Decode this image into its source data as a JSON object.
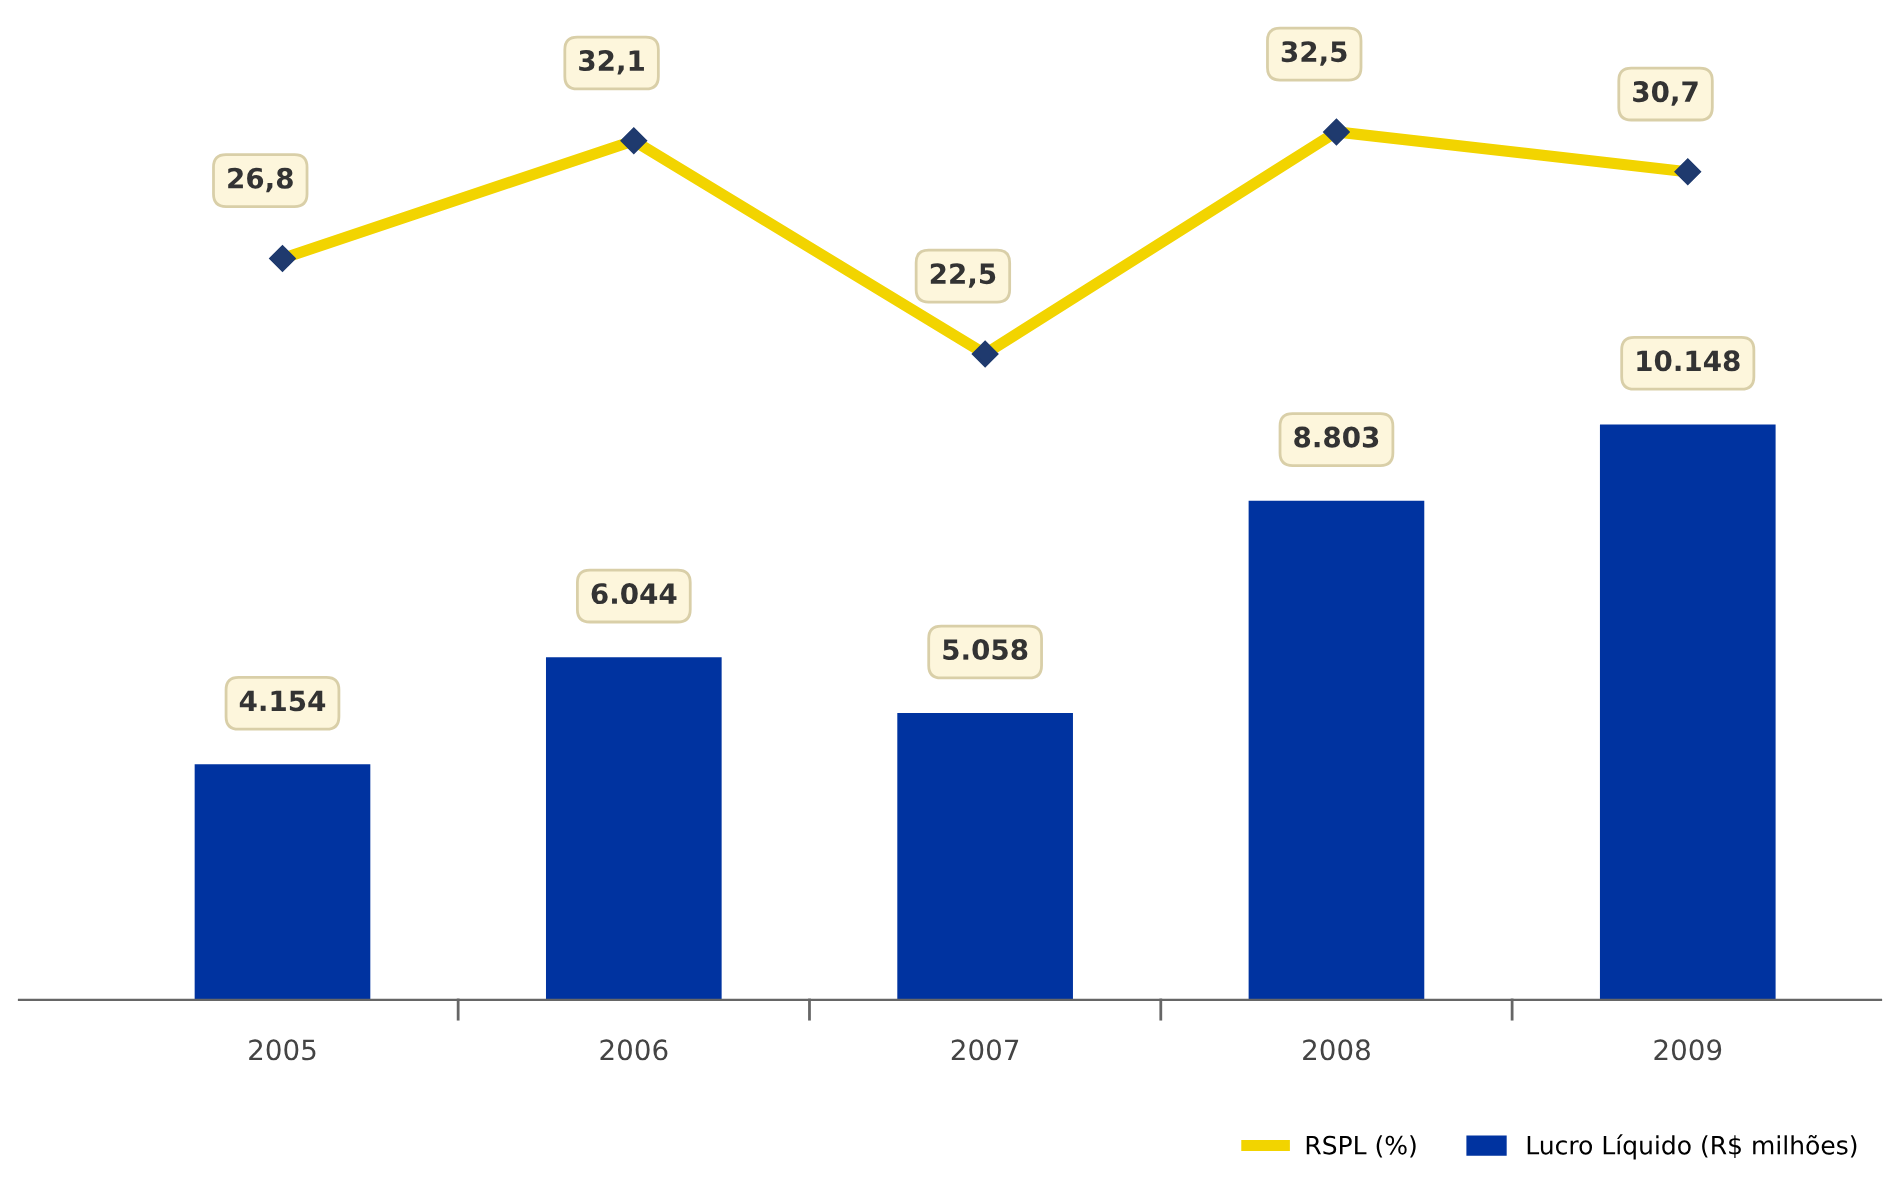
{
  "chart_data": [
    {
      "type": "line",
      "categories": [
        "2005",
        "2006",
        "2007",
        "2008",
        "2009"
      ],
      "series": [
        {
          "name": "RSPL (%)",
          "color": "#f2d400",
          "values": [
            26.8,
            32.1,
            22.5,
            32.5,
            30.7
          ],
          "value_labels": [
            "26,8",
            "32,1",
            "22,5",
            "32,5",
            "30,7"
          ]
        }
      ],
      "marker": "diamond",
      "tick_labels": false,
      "grid": false,
      "legend": "bottom right"
    },
    {
      "type": "bar",
      "categories": [
        "2005",
        "2006",
        "2007",
        "2008",
        "2009"
      ],
      "series": [
        {
          "name": "Lucro Líquido (R$ milhões)",
          "type": "bar",
          "color": "#0033a0",
          "values": [
            4154,
            6044,
            5058,
            8803,
            10148
          ],
          "value_labels": [
            "4.154",
            "6.044",
            "5.058",
            "8.803",
            "10.148"
          ]
        }
      ],
      "tick_labels": "x",
      "grid": false,
      "legend": "bottom right"
    }
  ]
}
